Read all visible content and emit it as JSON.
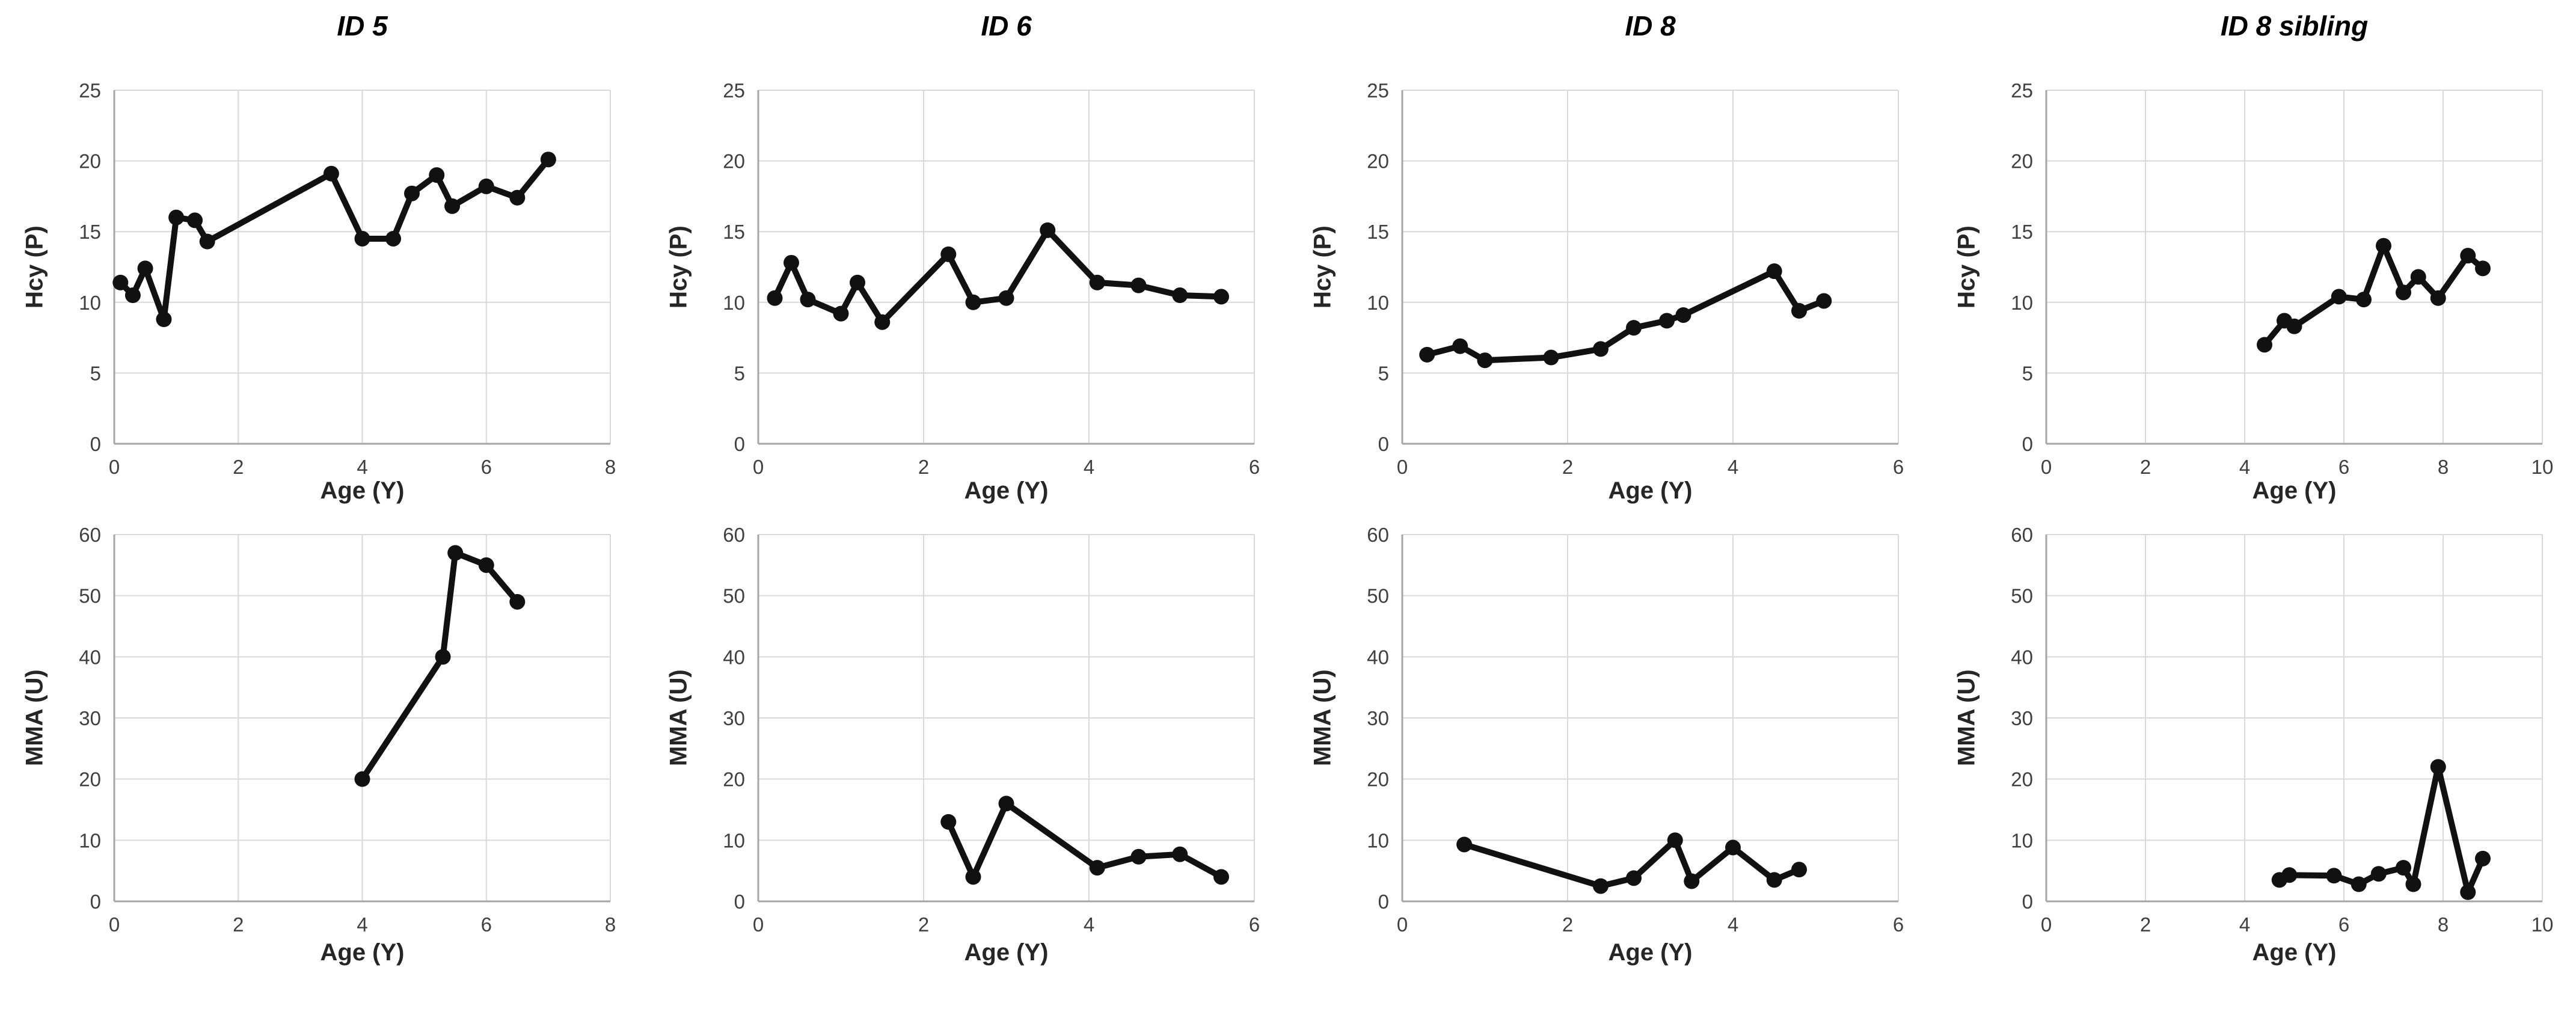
{
  "style": {
    "background": "#ffffff",
    "line_color": "#111111",
    "marker_color": "#111111",
    "grid_color": "#d9d9d9",
    "axis_color": "#a6a6a6",
    "tick_color": "#404040",
    "title_color": "#000000",
    "axis_label_color": "#262626"
  },
  "chart_data": [
    {
      "type": "line",
      "title": "ID 5",
      "xlabel": "Age (Y)",
      "ylabel": "Hcy (P)",
      "xlim": [
        0,
        8
      ],
      "ylim": [
        0,
        25
      ],
      "xticks": [
        0,
        2,
        4,
        6,
        8
      ],
      "yticks": [
        0,
        5,
        10,
        15,
        20,
        25
      ],
      "grid": true,
      "legend": "none",
      "x": [
        0.1,
        0.3,
        0.5,
        0.8,
        1.0,
        1.3,
        1.5,
        3.5,
        4.0,
        4.5,
        4.8,
        5.2,
        5.45,
        6.0,
        6.5,
        7.0
      ],
      "y": [
        11.4,
        10.5,
        12.4,
        8.8,
        16.0,
        15.8,
        14.3,
        19.1,
        14.5,
        14.5,
        17.7,
        19.0,
        16.8,
        18.2,
        17.4,
        20.1
      ]
    },
    {
      "type": "line",
      "title": "ID 6",
      "xlabel": "Age (Y)",
      "ylabel": "Hcy (P)",
      "xlim": [
        0,
        6
      ],
      "ylim": [
        0,
        25
      ],
      "xticks": [
        0,
        2,
        4,
        6
      ],
      "yticks": [
        0,
        5,
        10,
        15,
        20,
        25
      ],
      "grid": true,
      "legend": "none",
      "x": [
        0.2,
        0.4,
        0.6,
        1.0,
        1.2,
        1.5,
        2.3,
        2.6,
        3.0,
        3.5,
        4.1,
        4.6,
        5.1,
        5.6
      ],
      "y": [
        10.3,
        12.8,
        10.2,
        9.2,
        11.4,
        8.6,
        13.4,
        10.0,
        10.3,
        15.1,
        11.4,
        11.2,
        10.5,
        10.4
      ]
    },
    {
      "type": "line",
      "title": "ID 8",
      "xlabel": "Age (Y)",
      "ylabel": "Hcy (P)",
      "xlim": [
        0,
        6
      ],
      "ylim": [
        0,
        25
      ],
      "xticks": [
        0,
        2,
        4,
        6
      ],
      "yticks": [
        0,
        5,
        10,
        15,
        20,
        25
      ],
      "grid": true,
      "legend": "none",
      "x": [
        0.3,
        0.7,
        1.0,
        1.8,
        2.4,
        2.8,
        3.2,
        3.4,
        4.5,
        4.8,
        5.1
      ],
      "y": [
        6.3,
        6.9,
        5.9,
        6.1,
        6.7,
        8.2,
        8.7,
        9.1,
        12.2,
        9.4,
        10.1
      ]
    },
    {
      "type": "line",
      "title": "ID 8 sibling",
      "xlabel": "Age (Y)",
      "ylabel": "Hcy (P)",
      "xlim": [
        0,
        10
      ],
      "ylim": [
        0,
        25
      ],
      "xticks": [
        0,
        2,
        4,
        6,
        8,
        10
      ],
      "yticks": [
        0,
        5,
        10,
        15,
        20,
        25
      ],
      "grid": true,
      "legend": "none",
      "x": [
        4.4,
        4.8,
        5.0,
        5.9,
        6.4,
        6.8,
        7.2,
        7.5,
        7.9,
        8.5,
        8.8
      ],
      "y": [
        7.0,
        8.7,
        8.3,
        10.4,
        10.2,
        14.0,
        10.7,
        11.8,
        10.3,
        13.3,
        12.4
      ]
    },
    {
      "type": "line",
      "title": "",
      "xlabel": "Age (Y)",
      "ylabel": "MMA (U)",
      "xlim": [
        0,
        8
      ],
      "ylim": [
        0,
        60
      ],
      "xticks": [
        0,
        2,
        4,
        6,
        8
      ],
      "yticks": [
        0,
        10,
        20,
        30,
        40,
        50,
        60
      ],
      "grid": true,
      "legend": "none",
      "x": [
        4.0,
        5.3,
        5.5,
        6.0,
        6.5
      ],
      "y": [
        20,
        40,
        57,
        55,
        49
      ]
    },
    {
      "type": "line",
      "title": "",
      "xlabel": "Age (Y)",
      "ylabel": "MMA (U)",
      "xlim": [
        0,
        6
      ],
      "ylim": [
        0,
        60
      ],
      "xticks": [
        0,
        2,
        4,
        6
      ],
      "yticks": [
        0,
        10,
        20,
        30,
        40,
        50,
        60
      ],
      "grid": true,
      "legend": "none",
      "x": [
        2.3,
        2.6,
        3.0,
        4.1,
        4.6,
        5.1,
        5.6
      ],
      "y": [
        13,
        4,
        16,
        5.5,
        7.3,
        7.7,
        4
      ]
    },
    {
      "type": "line",
      "title": "",
      "xlabel": "Age (Y)",
      "ylabel": "MMA (U)",
      "xlim": [
        0,
        6
      ],
      "ylim": [
        0,
        60
      ],
      "xticks": [
        0,
        2,
        4,
        6
      ],
      "yticks": [
        0,
        10,
        20,
        30,
        40,
        50,
        60
      ],
      "grid": true,
      "legend": "none",
      "x": [
        0.75,
        2.4,
        2.8,
        3.3,
        3.5,
        4.0,
        4.5,
        4.8
      ],
      "y": [
        9.3,
        2.5,
        3.8,
        10,
        3.3,
        8.8,
        3.5,
        5.2
      ]
    },
    {
      "type": "line",
      "title": "",
      "xlabel": "Age (Y)",
      "ylabel": "MMA (U)",
      "xlim": [
        0,
        10
      ],
      "ylim": [
        0,
        60
      ],
      "xticks": [
        0,
        2,
        4,
        6,
        8,
        10
      ],
      "yticks": [
        0,
        10,
        20,
        30,
        40,
        50,
        60
      ],
      "grid": true,
      "legend": "none",
      "x": [
        4.7,
        4.9,
        5.8,
        6.3,
        6.7,
        7.2,
        7.4,
        7.9,
        8.5,
        8.8
      ],
      "y": [
        3.5,
        4.3,
        4.2,
        2.8,
        4.5,
        5.5,
        2.8,
        22,
        1.5,
        7.0
      ]
    }
  ]
}
